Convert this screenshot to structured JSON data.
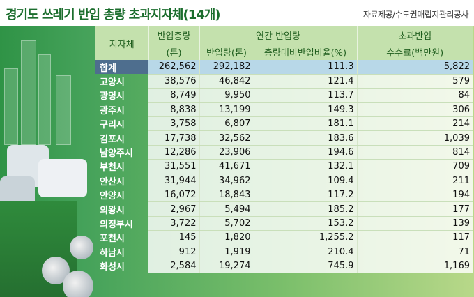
{
  "title": "경기도 쓰레기 반입 총량 초과지자체(14개)",
  "source": "자료제공/수도권매립지관리공사",
  "header": {
    "col_name": "지자체",
    "col_total": "반입총량",
    "col_total_unit": "(톤)",
    "group_annual": "연간 반입량",
    "col_annual_amount": "반입량(톤)",
    "col_ratio": "총량대비반입비율(%)",
    "col_fee": "초과반입",
    "col_fee_unit": "수수료(백만원)"
  },
  "rows": [
    {
      "name": "합계",
      "total": "262,562",
      "annual": "292,182",
      "ratio": "111.3",
      "fee": "5,822"
    },
    {
      "name": "고양시",
      "total": "38,576",
      "annual": "46,842",
      "ratio": "121.4",
      "fee": "579"
    },
    {
      "name": "광명시",
      "total": "8,749",
      "annual": "9,950",
      "ratio": "113.7",
      "fee": "84"
    },
    {
      "name": "광주시",
      "total": "8,838",
      "annual": "13,199",
      "ratio": "149.3",
      "fee": "306"
    },
    {
      "name": "구리시",
      "total": "3,758",
      "annual": "6,807",
      "ratio": "181.1",
      "fee": "214"
    },
    {
      "name": "김포시",
      "total": "17,738",
      "annual": "32,562",
      "ratio": "183.6",
      "fee": "1,039"
    },
    {
      "name": "남양주시",
      "total": "12,286",
      "annual": "23,906",
      "ratio": "194.6",
      "fee": "814"
    },
    {
      "name": "부천시",
      "total": "31,551",
      "annual": "41,671",
      "ratio": "132.1",
      "fee": "709"
    },
    {
      "name": "안산시",
      "total": "31,944",
      "annual": "34,962",
      "ratio": "109.4",
      "fee": "211"
    },
    {
      "name": "안양시",
      "total": "16,072",
      "annual": "18,843",
      "ratio": "117.2",
      "fee": "194"
    },
    {
      "name": "의왕시",
      "total": "2,967",
      "annual": "5,494",
      "ratio": "185.2",
      "fee": "177"
    },
    {
      "name": "의정부시",
      "total": "3,722",
      "annual": "5,702",
      "ratio": "153.2",
      "fee": "139"
    },
    {
      "name": "포천시",
      "total": "145",
      "annual": "1,820",
      "ratio": "1,255.2",
      "fee": "117"
    },
    {
      "name": "하남시",
      "total": "912",
      "annual": "1,919",
      "ratio": "210.4",
      "fee": "71"
    },
    {
      "name": "화성시",
      "total": "2,584",
      "annual": "19,274",
      "ratio": "745.9",
      "fee": "1,169"
    }
  ]
}
